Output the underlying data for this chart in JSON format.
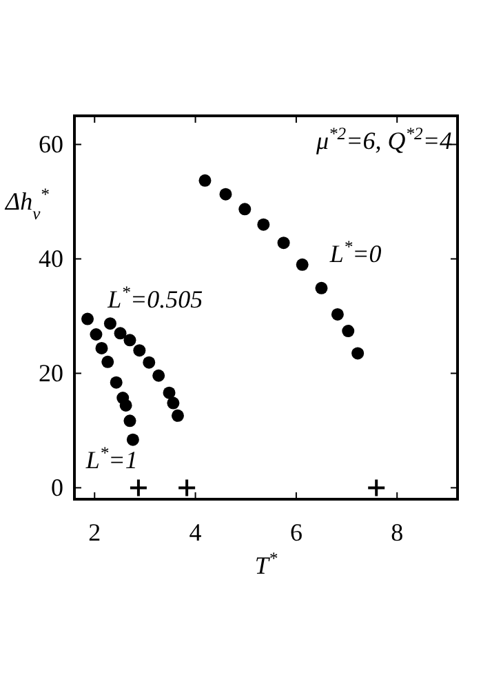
{
  "chart_data": {
    "type": "scatter",
    "xlabel": "T$^{*}$",
    "ylabel": "Δh$_{v}$$^{*}$",
    "annotations": [
      "μ$^{*2}$=6, Q$^{*2}$=4"
    ],
    "xlim": [
      1.6,
      9.2
    ],
    "xticks": [
      2,
      4,
      6,
      8
    ],
    "ylim": [
      -2,
      65
    ],
    "yticks": [
      0,
      20,
      40,
      60
    ],
    "grid": false,
    "marker": "circle",
    "series": [
      {
        "name": "L$^{*}$=0",
        "color": "#000000",
        "x": [
          4.19,
          4.6,
          4.98,
          5.35,
          5.75,
          6.12,
          6.5,
          6.82,
          7.03,
          7.22
        ],
        "values": [
          53.7,
          51.3,
          48.7,
          46,
          42.8,
          39,
          34.9,
          30.3,
          27.4,
          23.5
        ]
      },
      {
        "name": "L$^{*}$=0.505",
        "color": "#000000",
        "x": [
          2.31,
          2.51,
          2.7,
          2.89,
          3.08,
          3.27,
          3.48,
          3.56,
          3.65
        ],
        "values": [
          28.7,
          27,
          25.8,
          24,
          21.9,
          19.6,
          16.6,
          14.8,
          12.6
        ]
      },
      {
        "name": "L$^{*}$=1",
        "color": "#000000",
        "x": [
          1.86,
          2.03,
          2.14,
          2.26,
          2.43,
          2.56,
          2.62,
          2.7,
          2.76
        ],
        "values": [
          29.5,
          26.8,
          24.4,
          22,
          18.4,
          15.7,
          14.4,
          11.7,
          8.4
        ]
      },
      {
        "color": "#000000",
        "marker": "cross",
        "x": [
          2.87,
          3.83,
          7.59
        ],
        "values": [
          0,
          0,
          0
        ]
      }
    ]
  }
}
